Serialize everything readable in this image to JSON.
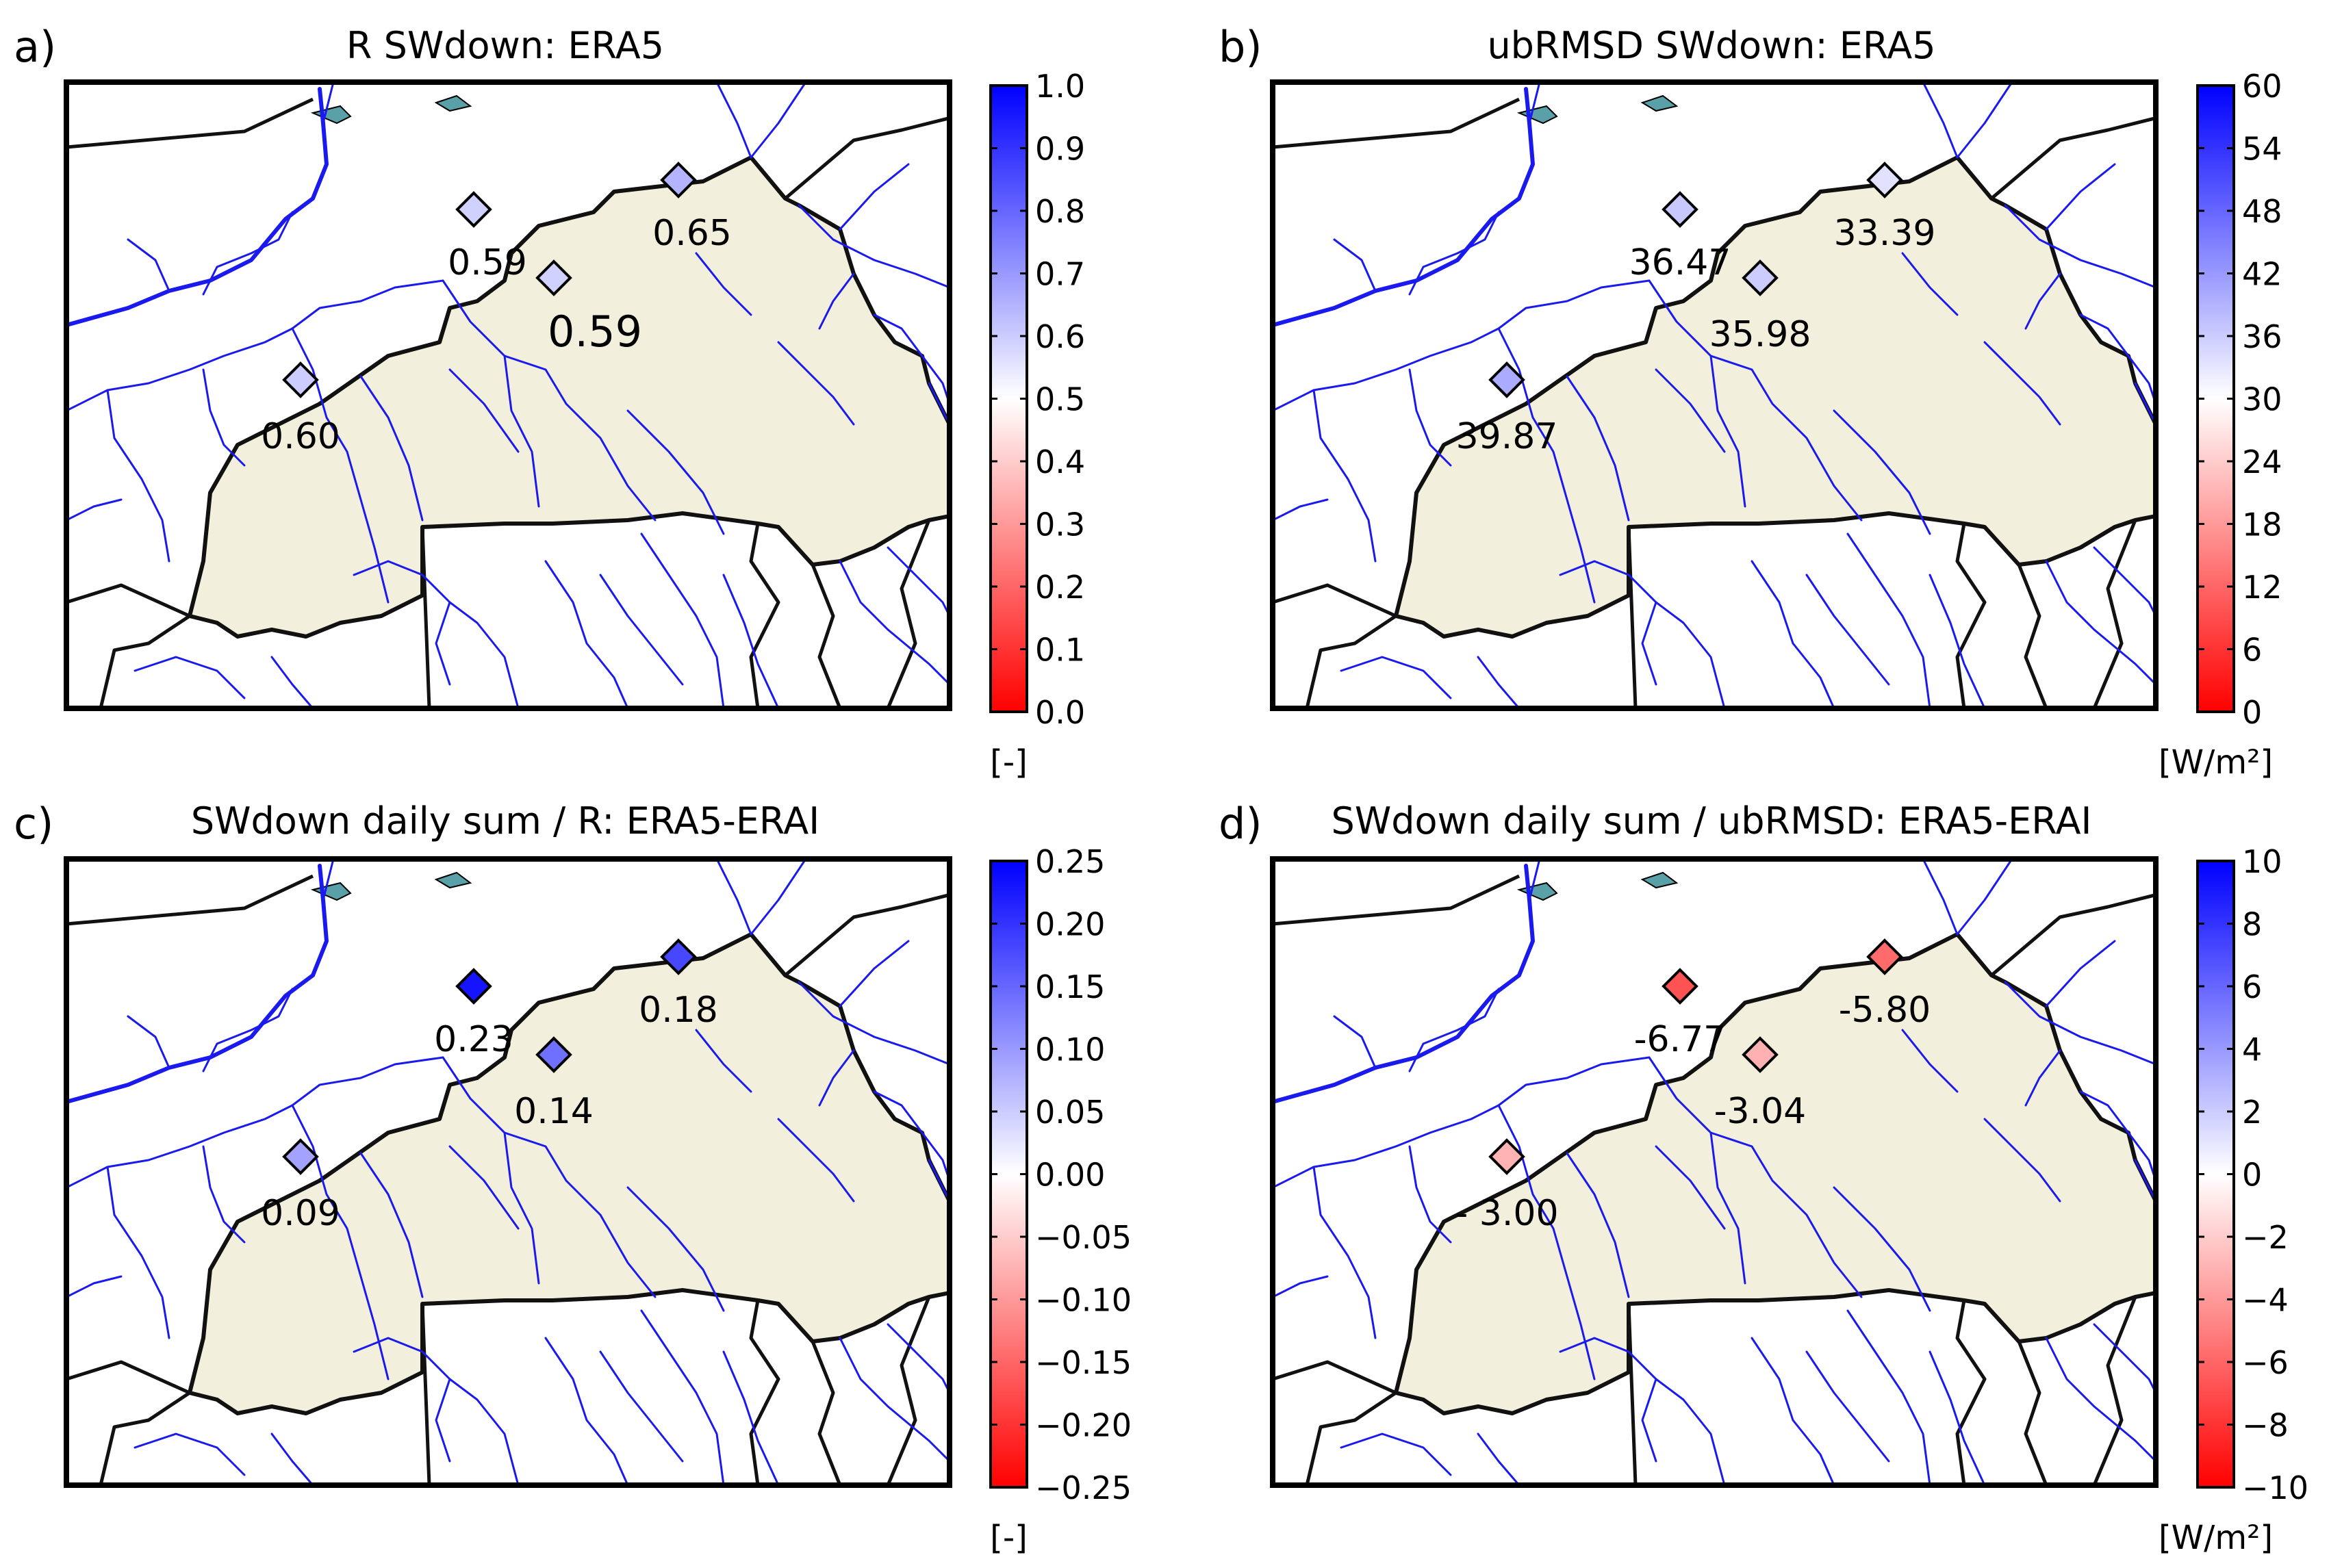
{
  "figure": {
    "colors": {
      "land": "#f2f0dc",
      "river": "#1a1aee",
      "border": "#111111",
      "cmap_low": "#ff0000",
      "cmap_mid": "#ffffff",
      "cmap_high": "#0000ff",
      "background": "#ffffff"
    }
  },
  "chart_data": [
    {
      "type": "scatter",
      "panel": "a)",
      "title": "R SWdown: ERA5",
      "marker": "diamond",
      "unit_label": "[-]",
      "colorbar": {
        "range": [
          0.0,
          1.0
        ],
        "ticks": [
          "0.0",
          "0.1",
          "0.2",
          "0.3",
          "0.4",
          "0.5",
          "0.6",
          "0.7",
          "0.8",
          "0.9",
          "1.0"
        ]
      },
      "stations": [
        {
          "label": "0.59",
          "value": 0.59
        },
        {
          "label": "0.65",
          "value": 0.65
        },
        {
          "label": "0.59",
          "value": 0.59
        },
        {
          "label": "0.60",
          "value": 0.6
        }
      ]
    },
    {
      "type": "scatter",
      "panel": "b)",
      "title": "ubRMSD SWdown: ERA5",
      "marker": "diamond",
      "unit_label": "[W/m²]",
      "colorbar": {
        "range": [
          0,
          60
        ],
        "ticks": [
          "0",
          "6",
          "12",
          "18",
          "24",
          "30",
          "36",
          "42",
          "48",
          "54",
          "60"
        ]
      },
      "stations": [
        {
          "label": "36.47",
          "value": 36.47
        },
        {
          "label": "33.39",
          "value": 33.39
        },
        {
          "label": "35.98",
          "value": 35.98
        },
        {
          "label": "39.87",
          "value": 39.87
        }
      ]
    },
    {
      "type": "scatter",
      "panel": "c)",
      "title": "SWdown daily sum / R: ERA5-ERAI",
      "marker": "diamond",
      "unit_label": "[-]",
      "colorbar": {
        "range": [
          -0.25,
          0.25
        ],
        "ticks": [
          "−0.25",
          "−0.20",
          "−0.15",
          "−0.10",
          "−0.05",
          "0.00",
          "0.05",
          "0.10",
          "0.15",
          "0.20",
          "0.25"
        ]
      },
      "stations": [
        {
          "label": "0.23",
          "value": 0.23
        },
        {
          "label": "0.18",
          "value": 0.18
        },
        {
          "label": "0.14",
          "value": 0.14
        },
        {
          "label": "0.09",
          "value": 0.09
        }
      ]
    },
    {
      "type": "scatter",
      "panel": "d)",
      "title": "SWdown daily sum / ubRMSD: ERA5-ERAI",
      "marker": "diamond",
      "unit_label": "[W/m²]",
      "colorbar": {
        "range": [
          -10,
          10
        ],
        "ticks": [
          "−10",
          "−8",
          "−6",
          "−4",
          "−2",
          "0",
          "2",
          "4",
          "6",
          "8",
          "10"
        ]
      },
      "stations": [
        {
          "label": "-6.77",
          "value": -6.77
        },
        {
          "label": "-5.80",
          "value": -5.8
        },
        {
          "label": "-3.04",
          "value": -3.04
        },
        {
          "label": "- 3.00",
          "value": -3.0
        }
      ]
    }
  ]
}
